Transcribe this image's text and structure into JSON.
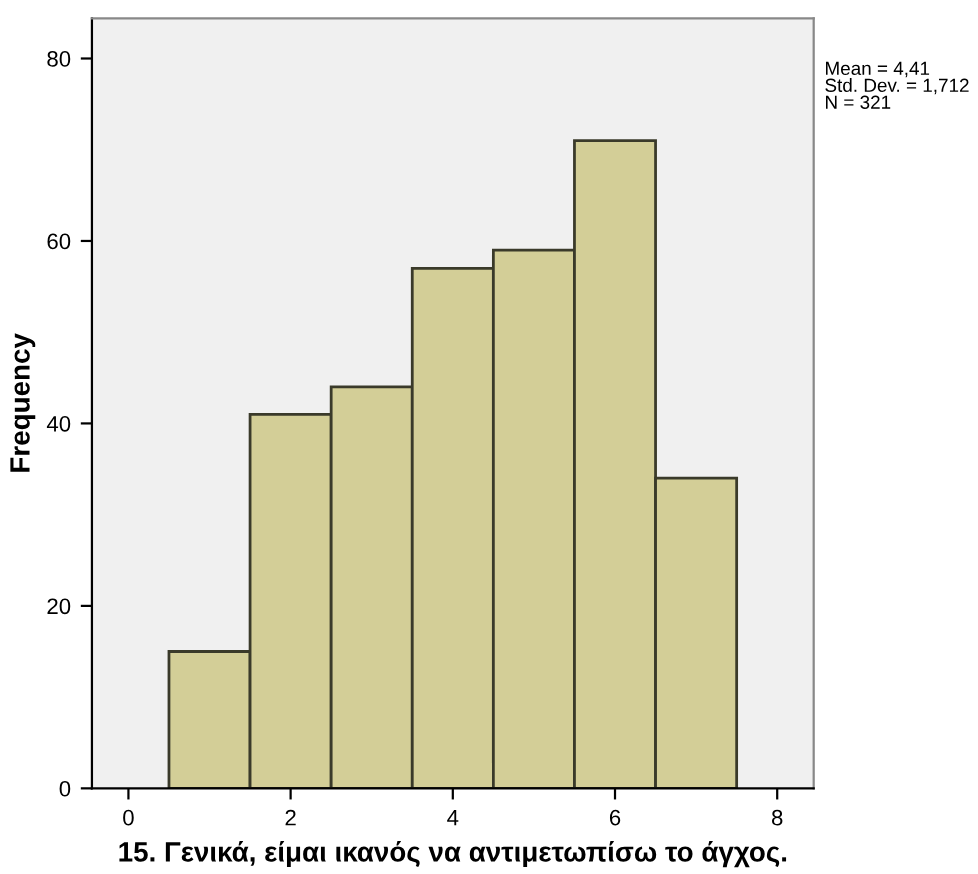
{
  "chart_data": {
    "type": "histogram",
    "xlabel": "15. Γενικά, είμαι ικανός να αντιμετωπίσω το άγχος.",
    "ylabel": "Frequency",
    "bins": [
      0.5,
      1.5,
      2.5,
      3.5,
      4.5,
      5.5,
      6.5,
      7.5
    ],
    "values": [
      15,
      41,
      44,
      57,
      59,
      71,
      34
    ],
    "color": "#d3ce97",
    "xlim": [
      -0.45,
      8.45
    ],
    "xticks": [
      0,
      2,
      4,
      6,
      8
    ],
    "ylim": [
      0,
      84.4
    ],
    "yticks": [
      0,
      20,
      40,
      60,
      80
    ],
    "grid": false,
    "legend": false,
    "annotations": [
      "Mean = 4,41\nStd. Dev. = 1,712\nN = 321"
    ]
  }
}
